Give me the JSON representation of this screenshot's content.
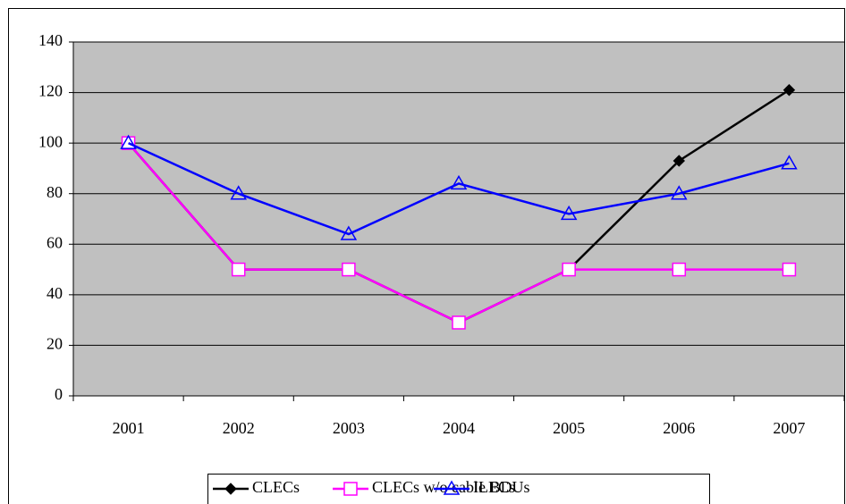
{
  "chart_data": {
    "type": "line",
    "categories": [
      "2001",
      "2002",
      "2003",
      "2004",
      "2005",
      "2006",
      "2007"
    ],
    "series": [
      {
        "name": "CLECs",
        "color": "#000000",
        "marker": "diamond",
        "values": [
          100,
          50,
          50,
          29,
          50,
          93,
          121
        ]
      },
      {
        "name": "CLECs w/o cable BDUs",
        "color": "#ff00ff",
        "marker": "square",
        "values": [
          100,
          50,
          50,
          29,
          50,
          50,
          50
        ]
      },
      {
        "name": "ILECs",
        "color": "#0000ff",
        "marker": "triangle",
        "values": [
          100,
          80,
          64,
          84,
          72,
          80,
          92
        ]
      }
    ],
    "ylim": [
      0,
      140
    ],
    "yticks": [
      0,
      20,
      40,
      60,
      80,
      100,
      120,
      140
    ],
    "grid": true,
    "plot_background": "#c0c0c0",
    "legend": "bottom"
  }
}
